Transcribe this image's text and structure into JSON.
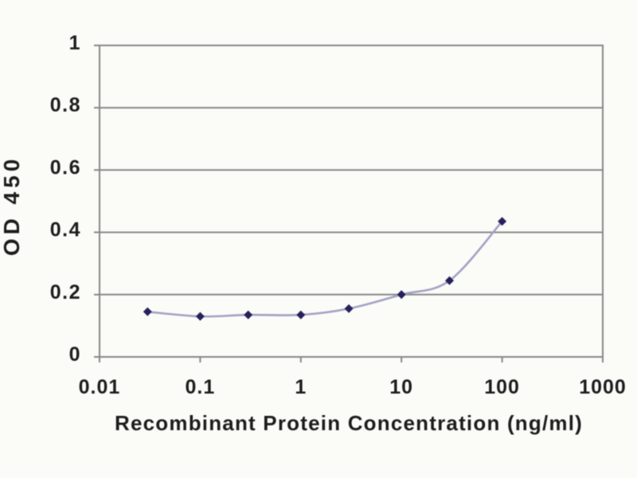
{
  "chart_data": {
    "type": "line",
    "title": "",
    "xlabel": "Recombinant Protein Concentration (ng/ml)",
    "ylabel": "OD 450",
    "x_scale": "log",
    "x_range": [
      0.01,
      1000
    ],
    "x_ticks": [
      "0.01",
      "0.1",
      "1",
      "10",
      "100",
      "1000"
    ],
    "y_scale": "linear",
    "y_range": [
      0,
      1
    ],
    "y_ticks": [
      "0",
      "0.2",
      "0.4",
      "0.6",
      "0.8",
      "1"
    ],
    "grid": "horizontal-on",
    "legend_position": "none",
    "series": [
      {
        "name": "OD 450",
        "marker": "diamond",
        "x": [
          0.03,
          0.1,
          0.3,
          1,
          3,
          10,
          30,
          100
        ],
        "y": [
          0.145,
          0.13,
          0.135,
          0.135,
          0.155,
          0.2,
          0.245,
          0.435
        ]
      }
    ]
  },
  "colors": {
    "background": "#fbfbf8",
    "axis": "#878787",
    "grid": "#878787",
    "tick_text": "#1d1d1d",
    "label_text": "#1d1d1d",
    "series_line": "#a2a2c4",
    "series_marker": "#26215c"
  }
}
